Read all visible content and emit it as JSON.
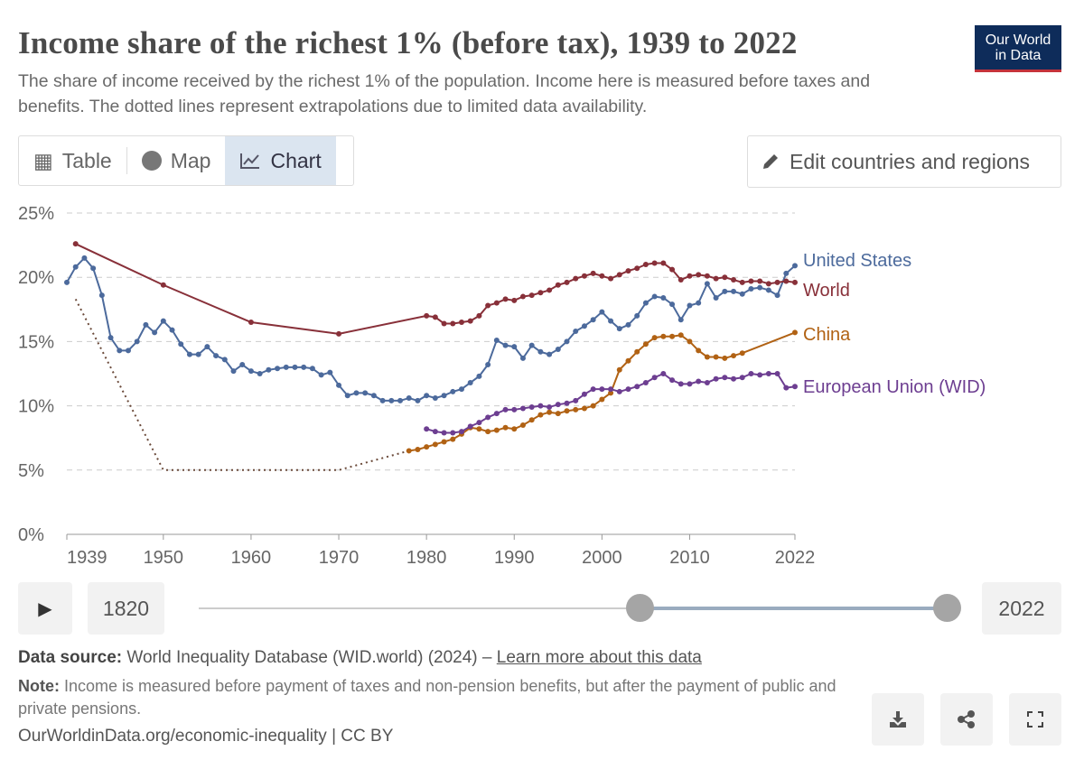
{
  "title": "Income share of the richest 1% (before tax), 1939 to 2022",
  "subtitle": "The share of income received by the richest 1% of the population. Income here is measured before taxes and benefits. The dotted lines represent extrapolations due to limited data availability.",
  "logo": {
    "line1": "Our World",
    "line2": "in Data"
  },
  "tabs": [
    {
      "label": "Table",
      "icon": "table-icon"
    },
    {
      "label": "Map",
      "icon": "globe-icon"
    },
    {
      "label": "Chart",
      "icon": "line-chart-icon",
      "active": true
    }
  ],
  "edit_button": {
    "label": "Edit countries and regions",
    "icon": "pencil-icon"
  },
  "timeline": {
    "start_label": "1820",
    "end_label": "2022",
    "min": 1820,
    "max": 2022,
    "range": [
      1939,
      2022
    ],
    "play_icon": "play-icon"
  },
  "footer": {
    "source_label": "Data source:",
    "source_text": "World Inequality Database (WID.world) (2024) –",
    "learn_more": "Learn more about this data",
    "note_label": "Note:",
    "note_text": "Income is measured before payment of taxes and non-pension benefits, but after the payment of public and private pensions.",
    "citation": "OurWorldinData.org/economic-inequality | CC BY"
  },
  "actions": [
    "download-icon",
    "share-icon",
    "fullscreen-icon"
  ],
  "chart_data": {
    "type": "line",
    "title": "Income share of the richest 1% (before tax), 1939 to 2022",
    "xlim": [
      1939,
      2022
    ],
    "ylim": [
      0,
      25
    ],
    "x_ticks": [
      "1939",
      "1950",
      "1960",
      "1970",
      "1980",
      "1990",
      "2000",
      "2010",
      "2022"
    ],
    "y_ticks": [
      "0%",
      "5%",
      "10%",
      "15%",
      "20%",
      "25%"
    ],
    "grid": "horizontal dashed",
    "legend": "right (line-end labels)",
    "series": [
      {
        "name": "United States",
        "color": "#4c6a9c",
        "x": [
          1939,
          1940,
          1941,
          1942,
          1943,
          1944,
          1945,
          1946,
          1947,
          1948,
          1949,
          1950,
          1951,
          1952,
          1953,
          1954,
          1955,
          1956,
          1957,
          1958,
          1959,
          1960,
          1961,
          1962,
          1963,
          1964,
          1965,
          1966,
          1967,
          1968,
          1969,
          1970,
          1971,
          1972,
          1973,
          1974,
          1975,
          1976,
          1977,
          1978,
          1979,
          1980,
          1981,
          1982,
          1983,
          1984,
          1985,
          1986,
          1987,
          1988,
          1989,
          1990,
          1991,
          1992,
          1993,
          1994,
          1995,
          1996,
          1997,
          1998,
          1999,
          2000,
          2001,
          2002,
          2003,
          2004,
          2005,
          2006,
          2007,
          2008,
          2009,
          2010,
          2011,
          2012,
          2013,
          2014,
          2015,
          2016,
          2017,
          2018,
          2019,
          2020,
          2021,
          2022
        ],
        "y": [
          19.6,
          20.8,
          21.5,
          20.7,
          18.6,
          15.3,
          14.3,
          14.3,
          15.0,
          16.3,
          15.7,
          16.6,
          15.9,
          14.8,
          14.0,
          14.0,
          14.6,
          13.9,
          13.6,
          12.7,
          13.2,
          12.7,
          12.5,
          12.8,
          12.9,
          13.0,
          13.0,
          13.0,
          12.9,
          12.4,
          12.6,
          11.6,
          10.8,
          11.0,
          11.0,
          10.8,
          10.4,
          10.4,
          10.4,
          10.6,
          10.4,
          10.8,
          10.6,
          10.8,
          11.1,
          11.3,
          11.8,
          12.3,
          13.2,
          15.1,
          14.7,
          14.6,
          13.7,
          14.7,
          14.2,
          14.0,
          14.4,
          15.0,
          15.8,
          16.2,
          16.7,
          17.3,
          16.6,
          16.0,
          16.3,
          17.0,
          18.0,
          18.5,
          18.4,
          17.9,
          16.7,
          17.8,
          18.0,
          19.5,
          18.4,
          18.9,
          18.9,
          18.7,
          19.1,
          19.2,
          19.0,
          18.6,
          20.3,
          20.9
        ]
      },
      {
        "name": "World",
        "color": "#883039",
        "x": [
          1940,
          1950,
          1960,
          1970,
          1980,
          1981,
          1982,
          1983,
          1984,
          1985,
          1986,
          1987,
          1988,
          1989,
          1990,
          1991,
          1992,
          1993,
          1994,
          1995,
          1996,
          1997,
          1998,
          1999,
          2000,
          2001,
          2002,
          2003,
          2004,
          2005,
          2006,
          2007,
          2008,
          2009,
          2010,
          2011,
          2012,
          2013,
          2014,
          2015,
          2016,
          2017,
          2018,
          2019,
          2020,
          2021,
          2022
        ],
        "y": [
          22.6,
          19.4,
          16.5,
          15.6,
          17.0,
          16.9,
          16.4,
          16.4,
          16.5,
          16.6,
          17.0,
          17.8,
          18.0,
          18.3,
          18.2,
          18.5,
          18.6,
          18.8,
          19.0,
          19.4,
          19.6,
          19.9,
          20.1,
          20.3,
          20.1,
          19.9,
          20.2,
          20.5,
          20.7,
          21.0,
          21.1,
          21.1,
          20.6,
          19.8,
          20.1,
          20.2,
          20.1,
          19.9,
          20.0,
          19.8,
          19.6,
          19.7,
          19.7,
          19.5,
          19.6,
          19.7,
          19.6
        ]
      },
      {
        "name": "China",
        "color": "#b16214",
        "extrapolated": {
          "x": [
            1940,
            1950,
            1970,
            1978
          ],
          "y": [
            18.3,
            5.0,
            5.0,
            6.5
          ]
        },
        "x": [
          1978,
          1979,
          1980,
          1981,
          1982,
          1983,
          1984,
          1985,
          1986,
          1987,
          1988,
          1989,
          1990,
          1991,
          1992,
          1993,
          1994,
          1995,
          1996,
          1997,
          1998,
          1999,
          2000,
          2001,
          2002,
          2003,
          2004,
          2005,
          2006,
          2007,
          2008,
          2009,
          2010,
          2011,
          2012,
          2013,
          2014,
          2015,
          2016,
          2022
        ],
        "y": [
          6.5,
          6.6,
          6.8,
          7.0,
          7.2,
          7.4,
          7.8,
          8.3,
          8.2,
          8.0,
          8.1,
          8.3,
          8.2,
          8.5,
          8.9,
          9.3,
          9.5,
          9.4,
          9.6,
          9.7,
          9.8,
          10.0,
          10.5,
          11.0,
          12.8,
          13.5,
          14.2,
          14.8,
          15.3,
          15.4,
          15.4,
          15.5,
          15.0,
          14.3,
          13.8,
          13.8,
          13.7,
          13.9,
          14.1,
          15.7
        ]
      },
      {
        "name": "European Union (WID)",
        "color": "#6d3e91",
        "x": [
          1980,
          1981,
          1982,
          1983,
          1984,
          1985,
          1986,
          1987,
          1988,
          1989,
          1990,
          1991,
          1992,
          1993,
          1994,
          1995,
          1996,
          1997,
          1998,
          1999,
          2000,
          2001,
          2002,
          2003,
          2004,
          2005,
          2006,
          2007,
          2008,
          2009,
          2010,
          2011,
          2012,
          2013,
          2014,
          2015,
          2016,
          2017,
          2018,
          2019,
          2020,
          2021,
          2022
        ],
        "y": [
          8.2,
          8.0,
          7.9,
          7.9,
          8.0,
          8.4,
          8.7,
          9.1,
          9.4,
          9.7,
          9.7,
          9.8,
          9.9,
          10.0,
          9.9,
          10.1,
          10.2,
          10.4,
          10.9,
          11.3,
          11.3,
          11.3,
          11.1,
          11.3,
          11.5,
          11.8,
          12.2,
          12.5,
          12.0,
          11.7,
          11.7,
          11.9,
          11.8,
          12.1,
          12.2,
          12.1,
          12.2,
          12.5,
          12.4,
          12.5,
          12.5,
          11.4,
          11.5
        ]
      }
    ]
  }
}
